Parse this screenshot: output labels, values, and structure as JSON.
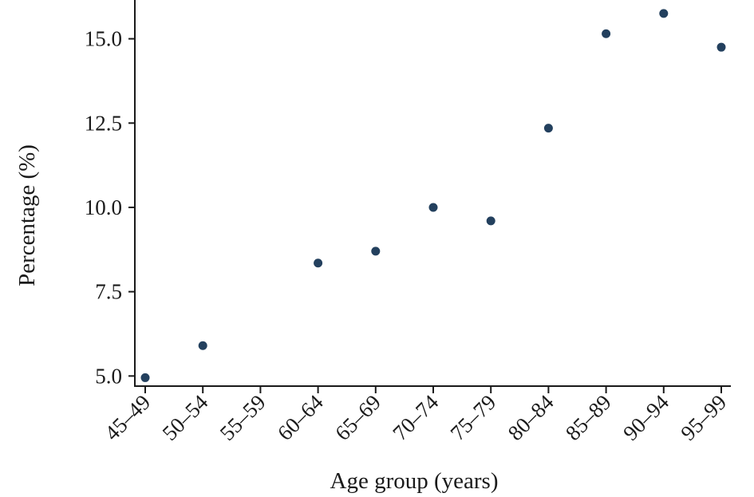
{
  "chart_data": {
    "type": "scatter",
    "title": "",
    "xlabel": "Age group (years)",
    "ylabel": "Percentage (%)",
    "categories": [
      "45–49",
      "50–54",
      "55–59",
      "60–64",
      "65–69",
      "70–74",
      "75–79",
      "80–84",
      "85–89",
      "90–94",
      "95–99"
    ],
    "series": [
      {
        "values": [
          4.95,
          5.9,
          null,
          8.35,
          8.7,
          10.0,
          9.6,
          12.35,
          15.15,
          15.75,
          14.75
        ],
        "color": "#23405e"
      }
    ],
    "yticks": [
      5.0,
      7.5,
      10.0,
      12.5,
      15.0
    ],
    "ytick_labels": [
      "5.0",
      "7.5",
      "10.0",
      "12.5",
      "15.0"
    ],
    "ylim": [
      4.7,
      16.15
    ],
    "grid": false,
    "legend": "none"
  }
}
